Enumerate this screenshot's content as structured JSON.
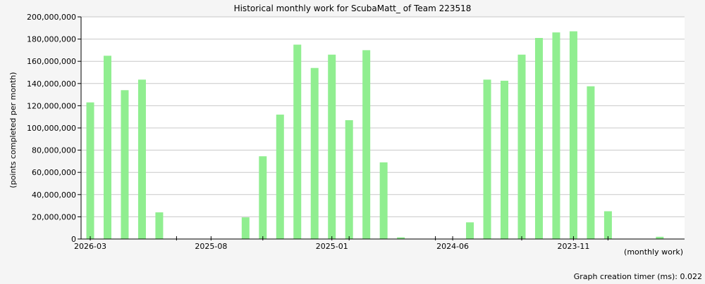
{
  "chart_data": {
    "type": "bar",
    "title": "Historical monthly work for ScubaMatt_ of Team 223518",
    "ylabel": "(points completed per month)",
    "xlabel": "(monthly work)",
    "ylim": [
      0,
      200000000
    ],
    "y_ticks": [
      "0",
      "20,000,000",
      "40,000,000",
      "60,000,000",
      "80,000,000",
      "100,000,000",
      "120,000,000",
      "140,000,000",
      "160,000,000",
      "180,000,000",
      "200,000,000"
    ],
    "x_tick_labels": [
      "2026-03",
      "2025-08",
      "2025-01",
      "2024-06",
      "2023-11"
    ],
    "categories": [
      "2026-03",
      "2026-02",
      "2026-01",
      "2025-12",
      "2025-11",
      "2025-10",
      "2025-09",
      "2025-08",
      "2025-07",
      "2025-06",
      "2025-05",
      "2025-04",
      "2025-03",
      "2025-02",
      "2025-01",
      "2024-12",
      "2024-11",
      "2024-10",
      "2024-09",
      "2024-08",
      "2024-07",
      "2024-06",
      "2024-05",
      "2024-04",
      "2024-03",
      "2024-02",
      "2024-01",
      "2023-12",
      "2023-11",
      "2023-10",
      "2023-09",
      "2023-08",
      "2023-07",
      "2023-06"
    ],
    "values": [
      123000000,
      165000000,
      134000000,
      143500000,
      24000000,
      0,
      0,
      0,
      0,
      19500000,
      74500000,
      112000000,
      175000000,
      154000000,
      166000000,
      107000000,
      170000000,
      69000000,
      1500000,
      0,
      0,
      0,
      15000000,
      143500000,
      142500000,
      166000000,
      181000000,
      186000000,
      187000000,
      137500000,
      25000000,
      0,
      0,
      2000000
    ],
    "bar_color": "#90ee90",
    "grid": true,
    "footer": "Graph creation timer (ms): 0.022"
  }
}
